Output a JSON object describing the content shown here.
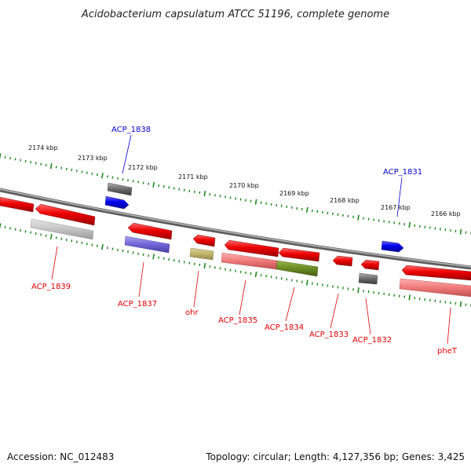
{
  "title": "Acidobacterium capsulatum ATCC 51196, complete genome",
  "footer": {
    "accession": "Accession: NC_012483",
    "topology": "Topology: circular; Length: 4,127,356 bp; Genes: 3,425"
  },
  "colors": {
    "forward_label": "#0000cc",
    "reverse_label": "#dd0000",
    "ruler_ticks": "#1a8a1a",
    "backbone": "#808080"
  },
  "tick_labels": [
    "2174 kbp",
    "2173 kbp",
    "2172 kbp",
    "2171 kbp",
    "2170 kbp",
    "2169 kbp",
    "2168 kbp",
    "2167 kbp",
    "2166 kbp"
  ],
  "genes_forward": [
    {
      "label": "ACP_1838",
      "color": "#0000cc"
    },
    {
      "label": "ACP_1831",
      "color": "#0000cc"
    }
  ],
  "genes_reverse": [
    {
      "label": "ACP_1839",
      "color": "#dd0000"
    },
    {
      "label": "ACP_1837",
      "color": "#dd0000"
    },
    {
      "label": "ohr",
      "color": "#dd0000"
    },
    {
      "label": "ACP_1835",
      "color": "#dd0000"
    },
    {
      "label": "ACP_1834",
      "color": "#dd0000"
    },
    {
      "label": "ACP_1833",
      "color": "#dd0000"
    },
    {
      "label": "ACP_1832",
      "color": "#dd0000"
    },
    {
      "label": "pheT",
      "color": "#dd0000"
    }
  ]
}
